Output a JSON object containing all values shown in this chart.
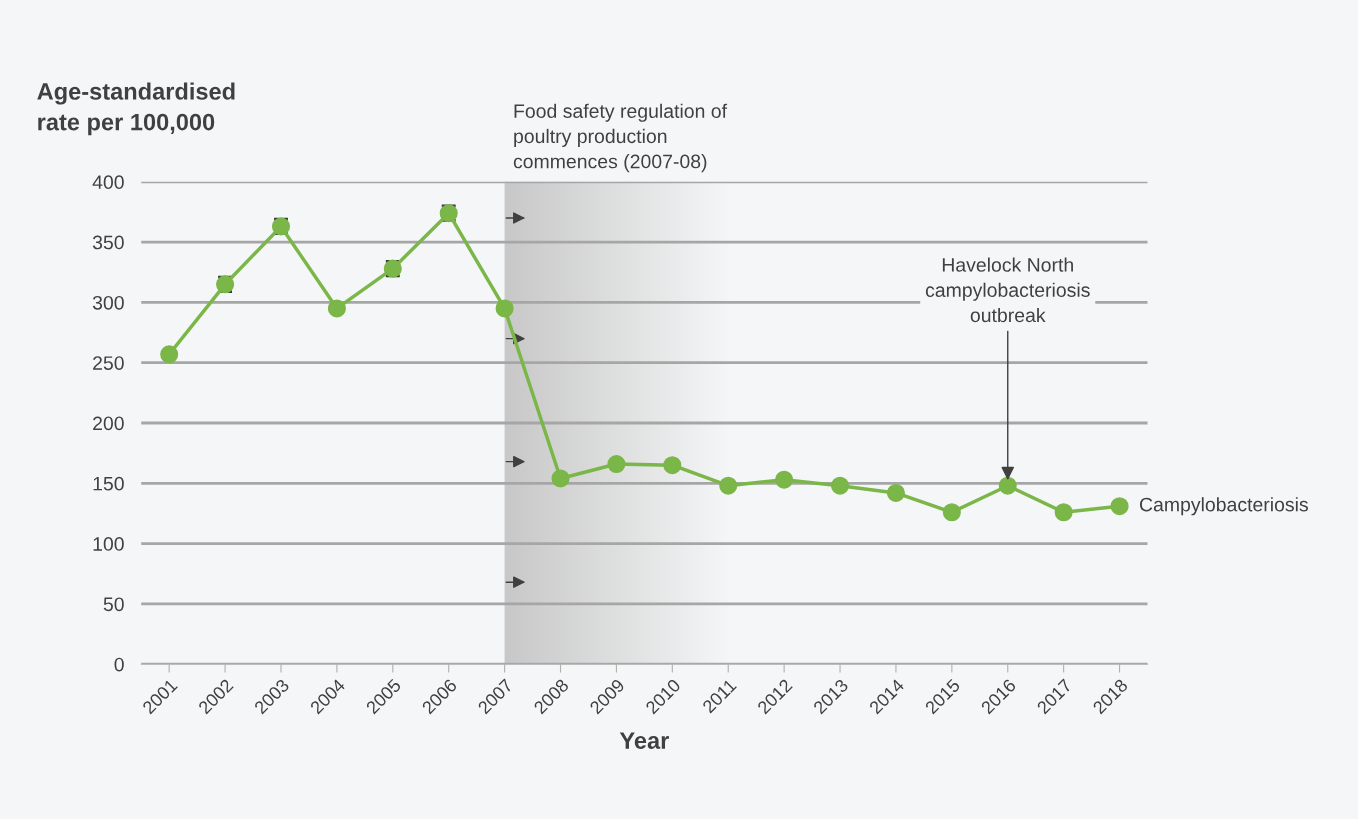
{
  "chart_data": {
    "type": "line",
    "xlabel": "Year",
    "ylabel": "Age-standardised\nrate per 100,000",
    "categories": [
      "2001",
      "2002",
      "2003",
      "2004",
      "2005",
      "2006",
      "2007",
      "2008",
      "2009",
      "2010",
      "2011",
      "2012",
      "2013",
      "2014",
      "2015",
      "2016",
      "2017",
      "2018"
    ],
    "series": [
      {
        "name": "Campylobacteriosis",
        "color": "#7ab648",
        "values": [
          257,
          315,
          363,
          295,
          328,
          374,
          295,
          154,
          166,
          165,
          148,
          153,
          148,
          142,
          126,
          148,
          126,
          131
        ],
        "errors": [
          null,
          6,
          6,
          null,
          6,
          6,
          null,
          null,
          null,
          null,
          null,
          null,
          null,
          null,
          null,
          null,
          null,
          null
        ]
      }
    ],
    "ylim": [
      0,
      400
    ],
    "yticks": [
      0,
      50,
      100,
      150,
      200,
      250,
      300,
      350,
      400
    ],
    "grid": "y",
    "marker": "circle",
    "line_style": "solid",
    "legend": false,
    "bands": [
      {
        "axis": "x",
        "from": "2007",
        "to": "2011",
        "label": "Food safety regulation of\npoultry production\ncommences (2007-08)",
        "color": "#c8c8c8"
      }
    ],
    "annotations": [
      {
        "text": "Havelock North\ncampylobacteriosis\noutbreak",
        "x": "2016",
        "y": 148
      }
    ]
  }
}
